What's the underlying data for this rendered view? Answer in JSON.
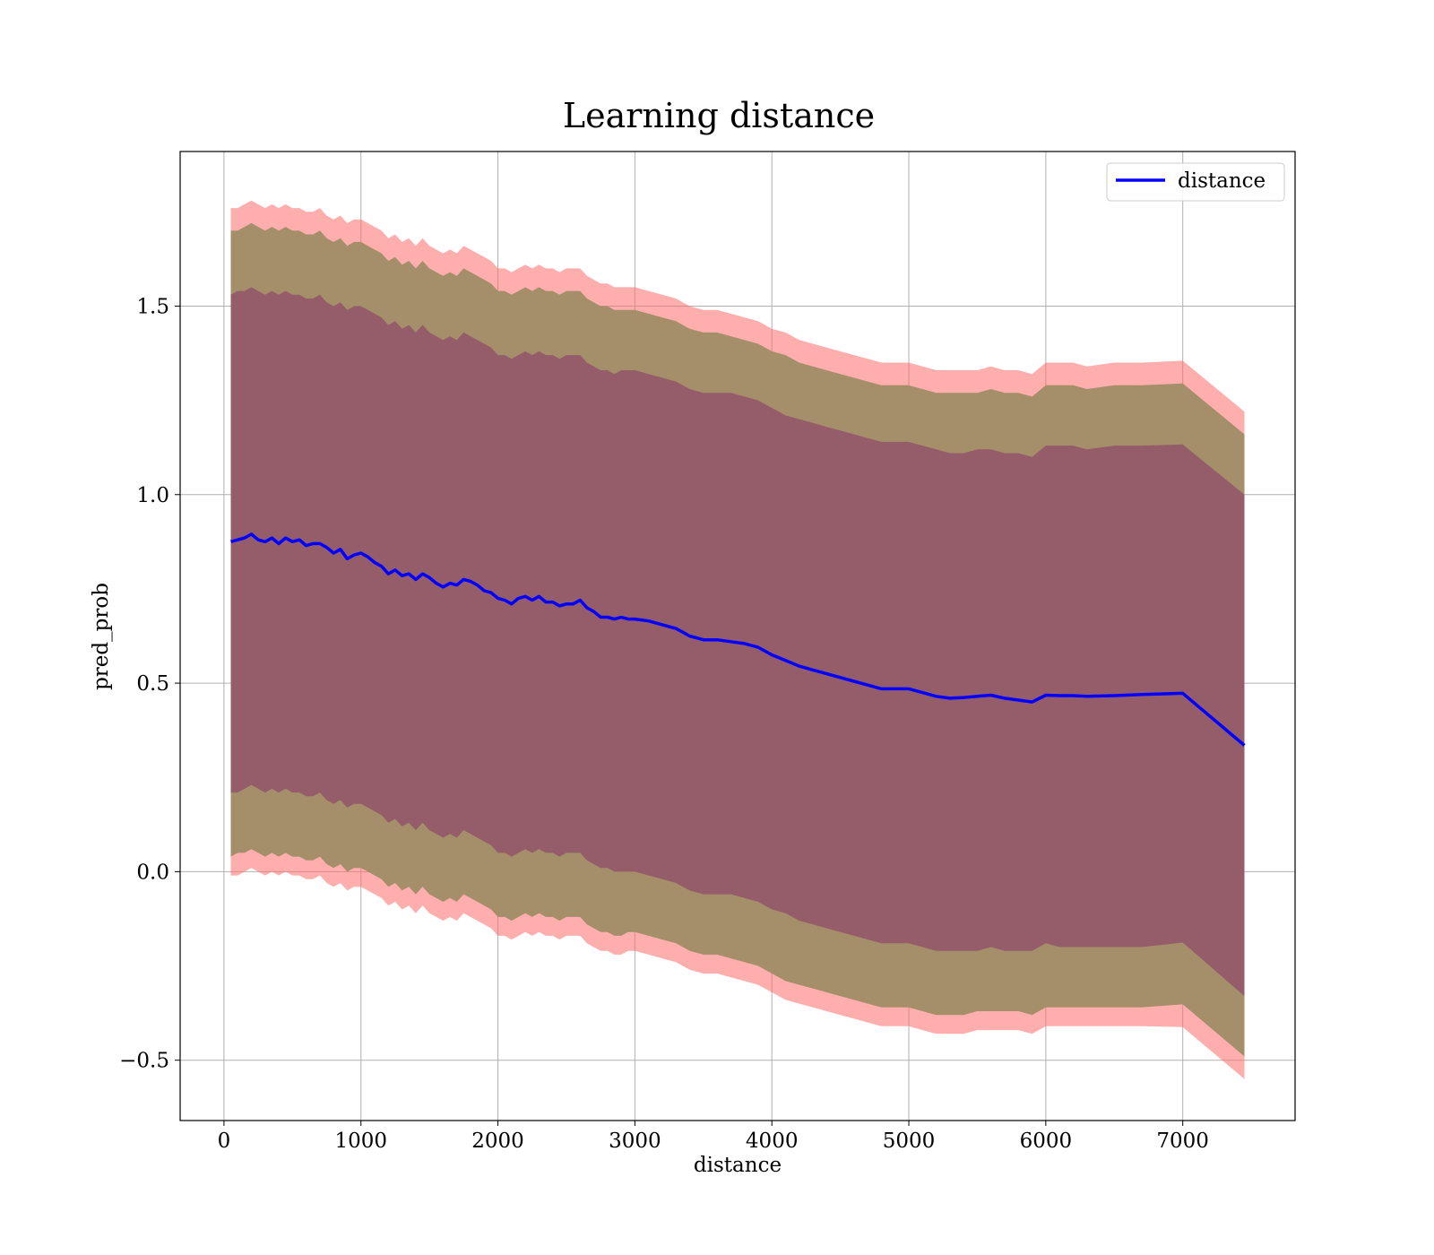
{
  "chart_data": {
    "type": "line",
    "title": "Learning distance",
    "xlabel": "distance",
    "ylabel": "pred_prob",
    "xlim": [
      -320,
      7820
    ],
    "ylim": [
      -0.66,
      1.91
    ],
    "xticks": [
      0,
      1000,
      2000,
      3000,
      4000,
      5000,
      6000,
      7000
    ],
    "xtick_labels": [
      "0",
      "1000",
      "2000",
      "3000",
      "4000",
      "5000",
      "6000",
      "7000"
    ],
    "yticks": [
      -0.5,
      0.0,
      0.5,
      1.0,
      1.5
    ],
    "ytick_labels": [
      "−0.5",
      "0.0",
      "0.5",
      "1.0",
      "1.5"
    ],
    "grid": true,
    "legend": {
      "position": "top-right",
      "entries": [
        "distance"
      ]
    },
    "colors": {
      "line": "#0000ff",
      "band_outer": "#ff6b6b",
      "band_middle": "#a58f6b",
      "band_inner": "#93586a"
    },
    "series": [
      {
        "name": "distance",
        "x": [
          50,
          100,
          150,
          200,
          250,
          300,
          350,
          400,
          450,
          500,
          550,
          600,
          650,
          700,
          750,
          800,
          850,
          900,
          950,
          1000,
          1050,
          1100,
          1150,
          1200,
          1250,
          1300,
          1350,
          1400,
          1450,
          1500,
          1550,
          1600,
          1650,
          1700,
          1750,
          1800,
          1850,
          1900,
          1950,
          2000,
          2050,
          2100,
          2150,
          2200,
          2250,
          2300,
          2350,
          2400,
          2450,
          2500,
          2550,
          2600,
          2650,
          2700,
          2750,
          2800,
          2850,
          2900,
          2950,
          3000,
          3100,
          3200,
          3300,
          3400,
          3500,
          3600,
          3700,
          3800,
          3900,
          4000,
          4100,
          4200,
          4300,
          4400,
          4500,
          4600,
          4700,
          4800,
          4900,
          5000,
          5100,
          5200,
          5300,
          5400,
          5500,
          5600,
          5700,
          5800,
          5900,
          6000,
          6100,
          6200,
          6300,
          6500,
          6700,
          7000,
          7450
        ],
        "y": [
          0.875,
          0.88,
          0.885,
          0.895,
          0.88,
          0.875,
          0.885,
          0.87,
          0.885,
          0.875,
          0.88,
          0.865,
          0.87,
          0.87,
          0.86,
          0.845,
          0.855,
          0.83,
          0.84,
          0.845,
          0.835,
          0.82,
          0.81,
          0.79,
          0.8,
          0.785,
          0.79,
          0.775,
          0.79,
          0.78,
          0.765,
          0.755,
          0.765,
          0.76,
          0.775,
          0.77,
          0.76,
          0.745,
          0.74,
          0.725,
          0.72,
          0.71,
          0.725,
          0.73,
          0.72,
          0.73,
          0.715,
          0.715,
          0.705,
          0.71,
          0.71,
          0.72,
          0.7,
          0.69,
          0.675,
          0.675,
          0.67,
          0.675,
          0.67,
          0.67,
          0.665,
          0.655,
          0.645,
          0.625,
          0.615,
          0.615,
          0.61,
          0.605,
          0.595,
          0.575,
          0.56,
          0.545,
          0.535,
          0.525,
          0.515,
          0.505,
          0.495,
          0.485,
          0.485,
          0.485,
          0.475,
          0.465,
          0.46,
          0.462,
          0.465,
          0.468,
          0.46,
          0.455,
          0.45,
          0.468,
          0.467,
          0.467,
          0.465,
          0.467,
          0.47,
          0.473,
          0.335
        ]
      }
    ],
    "bands": {
      "outer_upper": [
        1.76,
        1.76,
        1.77,
        1.78,
        1.77,
        1.76,
        1.77,
        1.76,
        1.77,
        1.76,
        1.76,
        1.75,
        1.75,
        1.76,
        1.74,
        1.73,
        1.74,
        1.72,
        1.73,
        1.73,
        1.72,
        1.71,
        1.7,
        1.68,
        1.69,
        1.67,
        1.68,
        1.66,
        1.68,
        1.66,
        1.65,
        1.64,
        1.65,
        1.64,
        1.66,
        1.65,
        1.64,
        1.63,
        1.62,
        1.6,
        1.6,
        1.59,
        1.6,
        1.61,
        1.6,
        1.61,
        1.6,
        1.6,
        1.59,
        1.6,
        1.6,
        1.6,
        1.58,
        1.57,
        1.56,
        1.56,
        1.55,
        1.55,
        1.55,
        1.55,
        1.54,
        1.53,
        1.52,
        1.5,
        1.49,
        1.49,
        1.48,
        1.47,
        1.46,
        1.44,
        1.43,
        1.41,
        1.4,
        1.39,
        1.38,
        1.37,
        1.36,
        1.35,
        1.35,
        1.35,
        1.34,
        1.33,
        1.33,
        1.33,
        1.33,
        1.34,
        1.33,
        1.33,
        1.32,
        1.35,
        1.35,
        1.35,
        1.34,
        1.35,
        1.35,
        1.355,
        1.22
      ],
      "middle_upper": [
        1.7,
        1.7,
        1.71,
        1.72,
        1.71,
        1.7,
        1.71,
        1.7,
        1.71,
        1.7,
        1.7,
        1.69,
        1.69,
        1.7,
        1.68,
        1.67,
        1.68,
        1.66,
        1.67,
        1.67,
        1.66,
        1.65,
        1.64,
        1.62,
        1.63,
        1.61,
        1.62,
        1.6,
        1.62,
        1.6,
        1.59,
        1.58,
        1.59,
        1.58,
        1.6,
        1.59,
        1.58,
        1.57,
        1.56,
        1.54,
        1.54,
        1.53,
        1.54,
        1.55,
        1.54,
        1.55,
        1.54,
        1.54,
        1.53,
        1.54,
        1.54,
        1.54,
        1.52,
        1.51,
        1.5,
        1.5,
        1.49,
        1.49,
        1.49,
        1.49,
        1.48,
        1.47,
        1.46,
        1.44,
        1.43,
        1.43,
        1.42,
        1.41,
        1.4,
        1.38,
        1.37,
        1.35,
        1.34,
        1.33,
        1.32,
        1.31,
        1.3,
        1.29,
        1.29,
        1.29,
        1.28,
        1.27,
        1.27,
        1.27,
        1.27,
        1.28,
        1.27,
        1.27,
        1.26,
        1.29,
        1.29,
        1.29,
        1.28,
        1.29,
        1.29,
        1.295,
        1.16
      ],
      "inner_upper": [
        1.53,
        1.54,
        1.54,
        1.55,
        1.54,
        1.53,
        1.54,
        1.53,
        1.54,
        1.53,
        1.53,
        1.52,
        1.52,
        1.53,
        1.51,
        1.5,
        1.51,
        1.49,
        1.5,
        1.5,
        1.49,
        1.48,
        1.47,
        1.45,
        1.46,
        1.44,
        1.45,
        1.43,
        1.45,
        1.43,
        1.42,
        1.41,
        1.42,
        1.41,
        1.43,
        1.42,
        1.41,
        1.4,
        1.39,
        1.37,
        1.37,
        1.36,
        1.37,
        1.38,
        1.37,
        1.38,
        1.37,
        1.37,
        1.36,
        1.37,
        1.37,
        1.37,
        1.35,
        1.34,
        1.33,
        1.33,
        1.32,
        1.33,
        1.33,
        1.33,
        1.32,
        1.31,
        1.3,
        1.28,
        1.27,
        1.27,
        1.27,
        1.26,
        1.25,
        1.23,
        1.21,
        1.2,
        1.19,
        1.18,
        1.17,
        1.16,
        1.15,
        1.14,
        1.14,
        1.14,
        1.13,
        1.12,
        1.11,
        1.11,
        1.12,
        1.12,
        1.11,
        1.11,
        1.1,
        1.13,
        1.13,
        1.13,
        1.12,
        1.13,
        1.13,
        1.133,
        1.0
      ],
      "inner_lower": [
        0.21,
        0.21,
        0.22,
        0.23,
        0.22,
        0.21,
        0.22,
        0.21,
        0.22,
        0.21,
        0.21,
        0.2,
        0.2,
        0.21,
        0.19,
        0.18,
        0.19,
        0.17,
        0.18,
        0.18,
        0.17,
        0.16,
        0.15,
        0.13,
        0.14,
        0.12,
        0.13,
        0.11,
        0.13,
        0.11,
        0.1,
        0.09,
        0.1,
        0.09,
        0.11,
        0.1,
        0.09,
        0.08,
        0.07,
        0.05,
        0.05,
        0.04,
        0.05,
        0.06,
        0.05,
        0.06,
        0.05,
        0.05,
        0.04,
        0.05,
        0.05,
        0.05,
        0.03,
        0.02,
        0.01,
        0.01,
        0.0,
        0.0,
        0.0,
        0.0,
        -0.01,
        -0.02,
        -0.03,
        -0.05,
        -0.06,
        -0.06,
        -0.06,
        -0.07,
        -0.08,
        -0.1,
        -0.11,
        -0.13,
        -0.14,
        -0.15,
        -0.16,
        -0.17,
        -0.18,
        -0.19,
        -0.19,
        -0.19,
        -0.2,
        -0.21,
        -0.21,
        -0.21,
        -0.21,
        -0.2,
        -0.21,
        -0.21,
        -0.21,
        -0.19,
        -0.2,
        -0.2,
        -0.2,
        -0.2,
        -0.2,
        -0.188,
        -0.33
      ],
      "middle_lower": [
        0.04,
        0.05,
        0.05,
        0.06,
        0.05,
        0.04,
        0.05,
        0.04,
        0.05,
        0.04,
        0.04,
        0.03,
        0.03,
        0.04,
        0.02,
        0.01,
        0.02,
        0.0,
        0.01,
        0.01,
        0.0,
        -0.01,
        -0.02,
        -0.04,
        -0.03,
        -0.05,
        -0.04,
        -0.06,
        -0.04,
        -0.06,
        -0.07,
        -0.08,
        -0.07,
        -0.08,
        -0.06,
        -0.07,
        -0.08,
        -0.09,
        -0.1,
        -0.12,
        -0.12,
        -0.13,
        -0.12,
        -0.11,
        -0.12,
        -0.11,
        -0.12,
        -0.12,
        -0.13,
        -0.12,
        -0.12,
        -0.12,
        -0.14,
        -0.15,
        -0.16,
        -0.16,
        -0.17,
        -0.17,
        -0.16,
        -0.16,
        -0.17,
        -0.18,
        -0.19,
        -0.21,
        -0.22,
        -0.22,
        -0.23,
        -0.24,
        -0.25,
        -0.27,
        -0.29,
        -0.3,
        -0.31,
        -0.32,
        -0.33,
        -0.34,
        -0.35,
        -0.36,
        -0.36,
        -0.36,
        -0.37,
        -0.38,
        -0.38,
        -0.38,
        -0.37,
        -0.37,
        -0.37,
        -0.37,
        -0.38,
        -0.36,
        -0.36,
        -0.36,
        -0.36,
        -0.36,
        -0.36,
        -0.352,
        -0.49
      ],
      "outer_lower": [
        -0.01,
        -0.01,
        0.0,
        0.01,
        0.0,
        -0.01,
        0.0,
        -0.01,
        0.0,
        -0.01,
        -0.01,
        -0.02,
        -0.02,
        -0.01,
        -0.03,
        -0.04,
        -0.03,
        -0.05,
        -0.04,
        -0.04,
        -0.05,
        -0.06,
        -0.07,
        -0.09,
        -0.08,
        -0.1,
        -0.09,
        -0.11,
        -0.09,
        -0.11,
        -0.12,
        -0.13,
        -0.12,
        -0.13,
        -0.11,
        -0.12,
        -0.13,
        -0.14,
        -0.15,
        -0.17,
        -0.17,
        -0.18,
        -0.17,
        -0.16,
        -0.17,
        -0.16,
        -0.17,
        -0.17,
        -0.18,
        -0.17,
        -0.17,
        -0.17,
        -0.19,
        -0.2,
        -0.21,
        -0.21,
        -0.22,
        -0.22,
        -0.21,
        -0.21,
        -0.22,
        -0.23,
        -0.24,
        -0.26,
        -0.27,
        -0.27,
        -0.28,
        -0.29,
        -0.3,
        -0.32,
        -0.34,
        -0.35,
        -0.36,
        -0.37,
        -0.38,
        -0.39,
        -0.4,
        -0.41,
        -0.41,
        -0.41,
        -0.42,
        -0.43,
        -0.43,
        -0.43,
        -0.42,
        -0.42,
        -0.42,
        -0.42,
        -0.43,
        -0.41,
        -0.41,
        -0.41,
        -0.41,
        -0.41,
        -0.41,
        -0.412,
        -0.55
      ]
    }
  }
}
